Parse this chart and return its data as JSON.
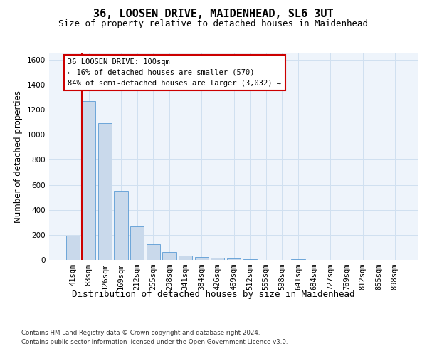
{
  "title": "36, LOOSEN DRIVE, MAIDENHEAD, SL6 3UT",
  "subtitle": "Size of property relative to detached houses in Maidenhead",
  "xlabel": "Distribution of detached houses by size in Maidenhead",
  "ylabel": "Number of detached properties",
  "categories": [
    "41sqm",
    "83sqm",
    "126sqm",
    "169sqm",
    "212sqm",
    "255sqm",
    "298sqm",
    "341sqm",
    "384sqm",
    "426sqm",
    "469sqm",
    "512sqm",
    "555sqm",
    "598sqm",
    "641sqm",
    "684sqm",
    "727sqm",
    "769sqm",
    "812sqm",
    "855sqm",
    "898sqm"
  ],
  "values": [
    195,
    1270,
    1095,
    550,
    265,
    125,
    65,
    35,
    25,
    15,
    10,
    5,
    0,
    0,
    5,
    0,
    0,
    0,
    0,
    0,
    0
  ],
  "bar_color": "#c9d9eb",
  "bar_edge_color": "#5b9bd5",
  "grid_color": "#d0e0f0",
  "background_color": "#eef4fb",
  "red_line_index": 1,
  "red_line_color": "#cc0000",
  "annotation_text": "36 LOOSEN DRIVE: 100sqm\n← 16% of detached houses are smaller (570)\n84% of semi-detached houses are larger (3,032) →",
  "annotation_box_color": "#cc0000",
  "ylim": [
    0,
    1650
  ],
  "yticks": [
    0,
    200,
    400,
    600,
    800,
    1000,
    1200,
    1400,
    1600
  ],
  "footer_line1": "Contains HM Land Registry data © Crown copyright and database right 2024.",
  "footer_line2": "Contains public sector information licensed under the Open Government Licence v3.0.",
  "title_fontsize": 11,
  "subtitle_fontsize": 9,
  "tick_fontsize": 7.5,
  "ylabel_fontsize": 8.5,
  "xlabel_fontsize": 9
}
